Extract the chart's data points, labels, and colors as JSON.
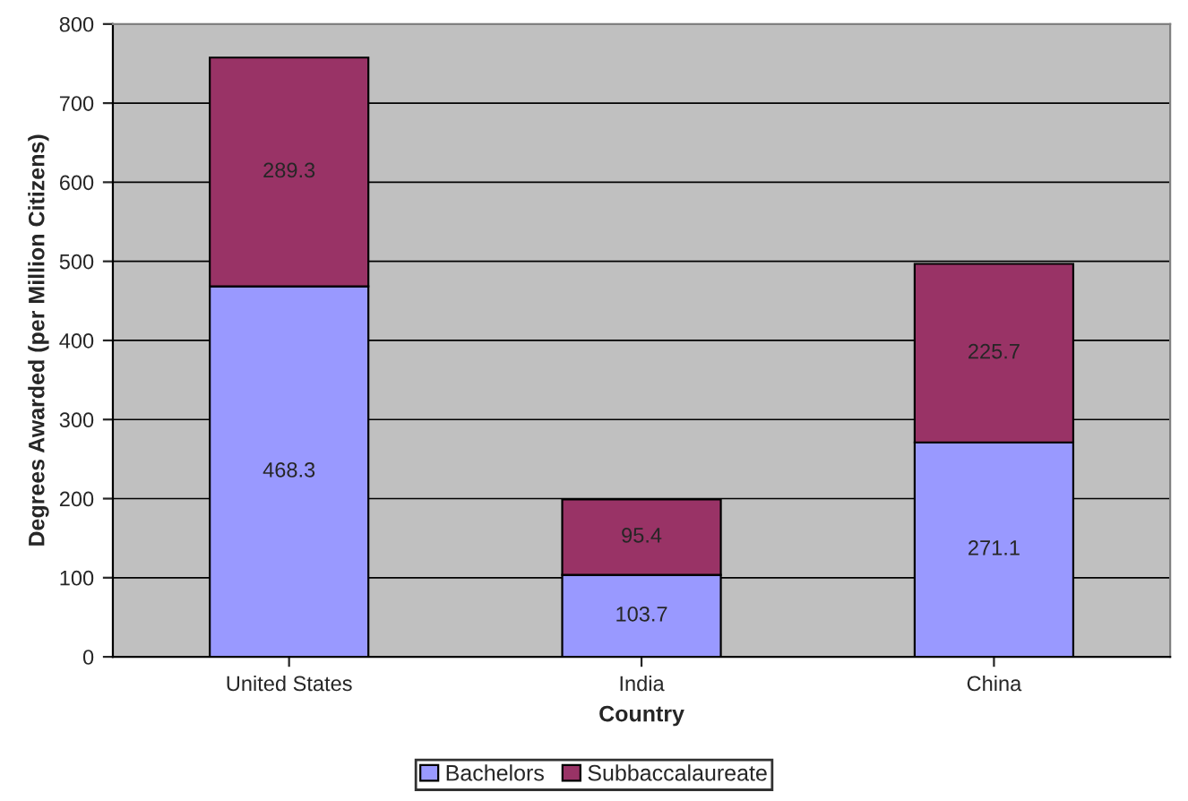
{
  "chart_data": {
    "type": "bar",
    "stacked": true,
    "xlabel": "Country",
    "ylabel": "Degrees Awarded (per Million Citizens)",
    "categories": [
      "United States",
      "India",
      "China"
    ],
    "series": [
      {
        "name": "Bachelors",
        "color": "#9999ff",
        "values": [
          468.3,
          103.7,
          271.1
        ]
      },
      {
        "name": "Subbaccalaureate",
        "color": "#993366",
        "values": [
          289.3,
          95.4,
          225.7
        ]
      }
    ],
    "ylim": [
      0,
      800
    ],
    "yticks": [
      0,
      100,
      200,
      300,
      400,
      500,
      600,
      700,
      800
    ],
    "grid": "y",
    "legend": "bottom",
    "data_labels": true
  }
}
